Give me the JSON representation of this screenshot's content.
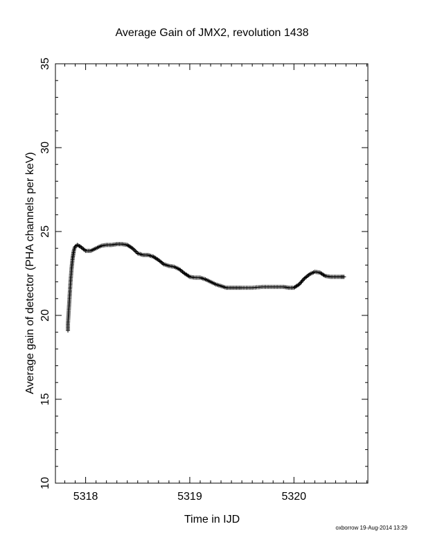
{
  "chart_data": {
    "type": "scatter",
    "title": "Average Gain of JMX2, revolution 1438",
    "xlabel": "Time in IJD",
    "ylabel": "Average gain of detector (PHA channels per keV)",
    "xlim": [
      5317.71,
      5320.71
    ],
    "ylim": [
      10,
      35
    ],
    "x_ticks": [
      5318,
      5319,
      5320
    ],
    "y_ticks": [
      10,
      15,
      20,
      25,
      30,
      35
    ],
    "grid": false,
    "marker": "plus",
    "series": [
      {
        "x": [
          5317.83,
          5317.83,
          5317.835,
          5317.84,
          5317.845,
          5317.85,
          5317.855,
          5317.86,
          5317.865,
          5317.87,
          5317.875,
          5317.88,
          5317.885,
          5317.89,
          5317.9,
          5317.92,
          5317.95,
          5318.0,
          5318.05,
          5318.1,
          5318.15,
          5318.2,
          5318.25,
          5318.3,
          5318.35,
          5318.4,
          5318.45,
          5318.5,
          5318.55,
          5318.6,
          5318.65,
          5318.7,
          5318.75,
          5318.8,
          5318.85,
          5318.9,
          5318.95,
          5319.0,
          5319.05,
          5319.1,
          5319.15,
          5319.2,
          5319.25,
          5319.3,
          5319.35,
          5319.4,
          5319.45,
          5319.5,
          5319.6,
          5319.7,
          5319.8,
          5319.9,
          5319.95,
          5320.0,
          5320.05,
          5320.1,
          5320.15,
          5320.2,
          5320.25,
          5320.3,
          5320.35,
          5320.4,
          5320.45,
          5320.48
        ],
        "y": [
          19.1,
          19.5,
          20.0,
          20.5,
          21.0,
          21.5,
          22.0,
          22.4,
          22.8,
          23.1,
          23.4,
          23.6,
          23.8,
          23.95,
          24.1,
          24.2,
          24.1,
          23.85,
          23.85,
          24.0,
          24.15,
          24.2,
          24.2,
          24.25,
          24.25,
          24.2,
          24.0,
          23.7,
          23.6,
          23.6,
          23.5,
          23.3,
          23.05,
          22.95,
          22.9,
          22.75,
          22.5,
          22.3,
          22.25,
          22.25,
          22.15,
          22.0,
          21.85,
          21.75,
          21.65,
          21.65,
          21.65,
          21.65,
          21.65,
          21.7,
          21.7,
          21.7,
          21.65,
          21.65,
          21.85,
          22.2,
          22.45,
          22.6,
          22.55,
          22.35,
          22.3,
          22.3,
          22.3,
          22.3
        ]
      }
    ]
  },
  "footer": "oxborrow 19-Aug-2014 13:29"
}
